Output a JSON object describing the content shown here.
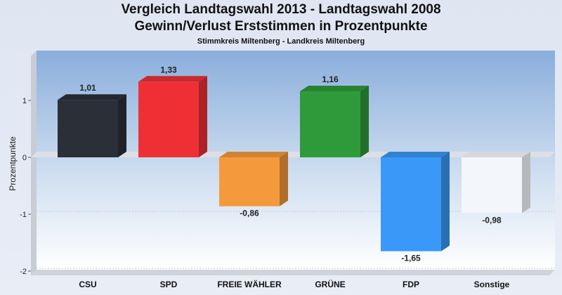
{
  "header": {
    "title_line1": "Vergleich Landtagswahl 2013 - Landtagswahl 2008",
    "title_line2": "Gewinn/Verlust Erststimmen in Prozentpunkte",
    "subtitle": "Stimmkreis Miltenberg - Landkreis Miltenberg"
  },
  "chart_data": {
    "type": "bar",
    "title": "Vergleich Landtagswahl 2013 - Landtagswahl 2008 Gewinn/Verlust Erststimmen in Prozentpunkte",
    "subtitle": "Stimmkreis Miltenberg - Landkreis Miltenberg",
    "xlabel": "",
    "ylabel": "Prozentpunkte",
    "ylim": [
      -2,
      1.8
    ],
    "yticks": [
      1,
      0,
      -1,
      -2
    ],
    "grid": true,
    "categories": [
      "CSU",
      "SPD",
      "FREIE WÄHLER",
      "GRÜNE",
      "FDP",
      "Sonstige"
    ],
    "values": [
      1.01,
      1.33,
      -0.86,
      1.16,
      -1.65,
      -0.98
    ],
    "value_labels": [
      "1,01",
      "1,33",
      "-0,86",
      "1,16",
      "-1,65",
      "-0,98"
    ],
    "colors": [
      "#2b2f38",
      "#ee3035",
      "#f59a3c",
      "#2f9a3a",
      "#3a99f8",
      "#f3f6fb"
    ]
  }
}
